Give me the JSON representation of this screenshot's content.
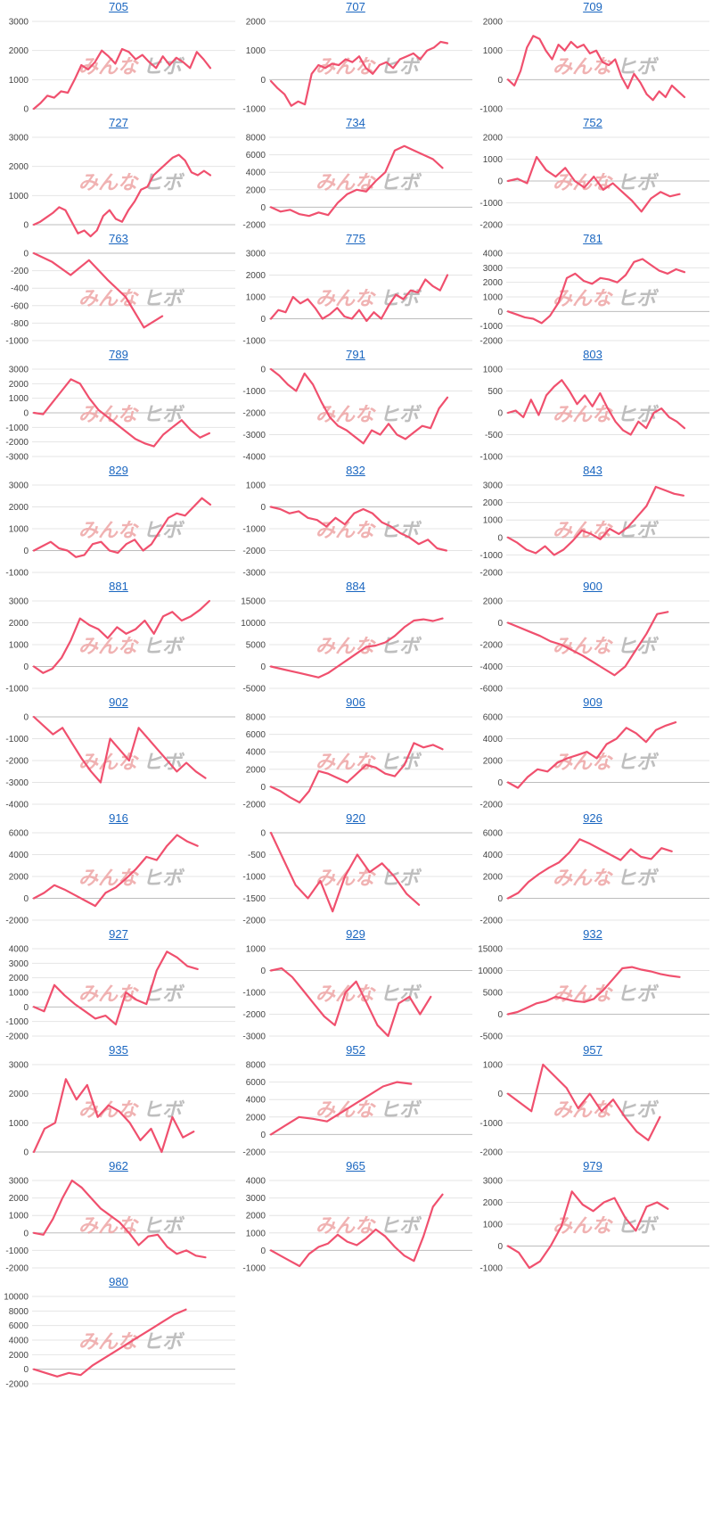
{
  "style": {
    "line_color": "#f0506e",
    "title_color": "#1a66c0",
    "grid_color": "#e4e4e4",
    "axis_color": "#bdbdbd",
    "tick_color": "#444444",
    "watermark_left_color": "#efaaaa",
    "watermark_right_color": "#b8b8b8"
  },
  "watermark": {
    "left": "みんな",
    "right": "ヒボ"
  },
  "chart_data": [
    {
      "title": "705",
      "type": "line",
      "yticks": [
        0,
        1000,
        2000,
        3000
      ],
      "ylim": [
        0,
        3000
      ],
      "values": [
        0,
        200,
        450,
        380,
        600,
        550,
        1000,
        1500,
        1350,
        1600,
        2000,
        1800,
        1550,
        2050,
        1950,
        1700,
        1850,
        1600,
        1400,
        1800,
        1500,
        1750,
        1600,
        1400,
        1950,
        1700,
        1400
      ]
    },
    {
      "title": "707",
      "type": "line",
      "yticks": [
        -1000,
        0,
        1000,
        2000
      ],
      "ylim": [
        -1000,
        2000
      ],
      "values": [
        -50,
        -300,
        -500,
        -900,
        -750,
        -850,
        200,
        500,
        400,
        550,
        500,
        700,
        600,
        800,
        400,
        200,
        500,
        600,
        400,
        700,
        800,
        900,
        700,
        1000,
        1100,
        1300,
        1250
      ]
    },
    {
      "title": "709",
      "type": "line",
      "yticks": [
        -1000,
        0,
        1000,
        2000
      ],
      "ylim": [
        -1000,
        2000
      ],
      "values": [
        0,
        -200,
        300,
        1100,
        1500,
        1400,
        1000,
        700,
        1200,
        1000,
        1300,
        1100,
        1200,
        900,
        1000,
        600,
        500,
        700,
        100,
        -300,
        200,
        -100,
        -500,
        -700,
        -400,
        -600,
        -200,
        -400,
        -600
      ]
    },
    {
      "title": "727",
      "type": "line",
      "yticks": [
        0,
        1000,
        2000,
        3000
      ],
      "ylim": [
        0,
        3000
      ],
      "values": [
        0,
        100,
        250,
        400,
        600,
        500,
        100,
        -300,
        -200,
        -400,
        -200,
        300,
        500,
        200,
        100,
        500,
        800,
        1200,
        1300,
        1700,
        1900,
        2100,
        2300,
        2400,
        2200,
        1800,
        1700,
        1850,
        1700
      ]
    },
    {
      "title": "734",
      "type": "line",
      "yticks": [
        -2000,
        0,
        2000,
        4000,
        6000,
        8000
      ],
      "ylim": [
        -2000,
        8000
      ],
      "values": [
        0,
        -500,
        -300,
        -800,
        -1000,
        -600,
        -900,
        500,
        1500,
        2000,
        1800,
        3000,
        4000,
        6500,
        7000,
        6500,
        6000,
        5500,
        4500
      ]
    },
    {
      "title": "752",
      "type": "line",
      "yticks": [
        -2000,
        -1000,
        0,
        1000,
        2000
      ],
      "ylim": [
        -2000,
        2000
      ],
      "values": [
        0,
        100,
        -100,
        1100,
        500,
        200,
        600,
        0,
        -300,
        200,
        -400,
        -100,
        -500,
        -900,
        -1400,
        -800,
        -500,
        -700,
        -600
      ]
    },
    {
      "title": "763",
      "type": "line",
      "yticks": [
        -1000,
        -800,
        -600,
        -400,
        -200,
        0
      ],
      "ylim": [
        -1000,
        0
      ],
      "values": [
        0,
        -100,
        -250,
        -80,
        -300,
        -500,
        -850,
        -720
      ]
    },
    {
      "title": "775",
      "type": "line",
      "yticks": [
        -1000,
        0,
        1000,
        2000,
        3000
      ],
      "ylim": [
        -1000,
        3000
      ],
      "values": [
        0,
        400,
        300,
        1000,
        700,
        900,
        500,
        0,
        200,
        500,
        100,
        0,
        400,
        -100,
        300,
        0,
        600,
        1100,
        900,
        1300,
        1200,
        1800,
        1500,
        1300,
        2000
      ]
    },
    {
      "title": "781",
      "type": "line",
      "yticks": [
        -2000,
        -1000,
        0,
        1000,
        2000,
        3000,
        4000
      ],
      "ylim": [
        -2000,
        4000
      ],
      "values": [
        0,
        -200,
        -400,
        -500,
        -800,
        -300,
        600,
        2300,
        2600,
        2100,
        1900,
        2300,
        2200,
        2000,
        2500,
        3400,
        3600,
        3200,
        2800,
        2600,
        2900,
        2700
      ]
    },
    {
      "title": "789",
      "type": "line",
      "yticks": [
        -3000,
        -2000,
        -1000,
        0,
        1000,
        2000,
        3000
      ],
      "ylim": [
        -3000,
        3000
      ],
      "values": [
        0,
        -100,
        700,
        1500,
        2300,
        2000,
        1000,
        200,
        -300,
        -800,
        -1300,
        -1800,
        -2100,
        -2300,
        -1500,
        -1000,
        -500,
        -1200,
        -1700,
        -1400
      ]
    },
    {
      "title": "791",
      "type": "line",
      "yticks": [
        -4000,
        -3000,
        -2000,
        -1000,
        0
      ],
      "ylim": [
        -4000,
        0
      ],
      "values": [
        0,
        -300,
        -700,
        -1000,
        -200,
        -700,
        -1500,
        -2200,
        -2600,
        -2800,
        -3100,
        -3400,
        -2800,
        -3000,
        -2500,
        -3000,
        -3200,
        -2900,
        -2600,
        -2700,
        -1800,
        -1300
      ]
    },
    {
      "title": "803",
      "type": "line",
      "yticks": [
        -1000,
        -500,
        0,
        500,
        1000
      ],
      "ylim": [
        -1000,
        1000
      ],
      "values": [
        0,
        50,
        -100,
        300,
        -50,
        400,
        600,
        750,
        500,
        200,
        400,
        150,
        450,
        100,
        -200,
        -400,
        -500,
        -200,
        -350,
        0,
        100,
        -100,
        -200,
        -350
      ]
    },
    {
      "title": "829",
      "type": "line",
      "yticks": [
        -1000,
        0,
        1000,
        2000,
        3000
      ],
      "ylim": [
        -1000,
        3000
      ],
      "values": [
        0,
        200,
        400,
        100,
        0,
        -300,
        -200,
        300,
        400,
        0,
        -100,
        300,
        500,
        0,
        300,
        900,
        1500,
        1700,
        1600,
        2000,
        2400,
        2100
      ]
    },
    {
      "title": "832",
      "type": "line",
      "yticks": [
        -3000,
        -2000,
        -1000,
        0,
        1000
      ],
      "ylim": [
        -3000,
        1000
      ],
      "values": [
        0,
        -100,
        -300,
        -200,
        -500,
        -600,
        -900,
        -500,
        -800,
        -300,
        -100,
        -300,
        -700,
        -900,
        -1200,
        -1400,
        -1700,
        -1500,
        -1900,
        -2000
      ]
    },
    {
      "title": "843",
      "type": "line",
      "yticks": [
        -2000,
        -1000,
        0,
        1000,
        2000,
        3000
      ],
      "ylim": [
        -2000,
        3000
      ],
      "values": [
        0,
        -300,
        -700,
        -900,
        -500,
        -1000,
        -700,
        -200,
        400,
        200,
        -100,
        500,
        200,
        600,
        1200,
        1800,
        2900,
        2700,
        2500,
        2400
      ]
    },
    {
      "title": "881",
      "type": "line",
      "yticks": [
        -1000,
        0,
        1000,
        2000,
        3000
      ],
      "ylim": [
        -1000,
        3000
      ],
      "values": [
        0,
        -300,
        -100,
        400,
        1200,
        2200,
        1900,
        1700,
        1300,
        1800,
        1500,
        1700,
        2100,
        1500,
        2300,
        2500,
        2100,
        2300,
        2600,
        3000
      ]
    },
    {
      "title": "884",
      "type": "line",
      "yticks": [
        -5000,
        0,
        5000,
        10000,
        15000
      ],
      "ylim": [
        -5000,
        15000
      ],
      "values": [
        0,
        -500,
        -1000,
        -1500,
        -2000,
        -2500,
        -1500,
        0,
        1500,
        3000,
        4500,
        4800,
        5500,
        7000,
        9000,
        10500,
        10800,
        10400,
        11000
      ]
    },
    {
      "title": "900",
      "type": "line",
      "yticks": [
        -6000,
        -4000,
        -2000,
        0,
        2000
      ],
      "ylim": [
        -6000,
        2000
      ],
      "values": [
        0,
        -400,
        -800,
        -1200,
        -1700,
        -2000,
        -2500,
        -3000,
        -3600,
        -4200,
        -4800,
        -4000,
        -2500,
        -1000,
        800,
        1000
      ]
    },
    {
      "title": "902",
      "type": "line",
      "yticks": [
        -4000,
        -3000,
        -2000,
        -1000,
        0
      ],
      "ylim": [
        -4000,
        0
      ],
      "values": [
        0,
        -400,
        -800,
        -500,
        -1200,
        -1900,
        -2500,
        -3000,
        -1000,
        -1500,
        -2000,
        -500,
        -1000,
        -1500,
        -2000,
        -2500,
        -2100,
        -2500,
        -2800
      ]
    },
    {
      "title": "906",
      "type": "line",
      "yticks": [
        -2000,
        0,
        2000,
        4000,
        6000,
        8000
      ],
      "ylim": [
        -2000,
        8000
      ],
      "values": [
        0,
        -500,
        -1200,
        -1800,
        -500,
        1800,
        1500,
        1000,
        500,
        1500,
        2500,
        2200,
        1500,
        1200,
        2500,
        5000,
        4500,
        4800,
        4300
      ]
    },
    {
      "title": "909",
      "type": "line",
      "yticks": [
        -2000,
        0,
        2000,
        4000,
        6000
      ],
      "ylim": [
        -2000,
        6000
      ],
      "values": [
        0,
        -500,
        500,
        1200,
        1000,
        1800,
        2200,
        2500,
        2800,
        2200,
        3500,
        4000,
        5000,
        4500,
        3700,
        4800,
        5200,
        5500
      ]
    },
    {
      "title": "916",
      "type": "line",
      "yticks": [
        -2000,
        0,
        2000,
        4000,
        6000
      ],
      "ylim": [
        -2000,
        6000
      ],
      "values": [
        0,
        500,
        1200,
        800,
        300,
        -200,
        -700,
        500,
        1000,
        1800,
        2700,
        3800,
        3500,
        4800,
        5800,
        5200,
        4800
      ]
    },
    {
      "title": "920",
      "type": "line",
      "yticks": [
        -2000,
        -1500,
        -1000,
        -500,
        0
      ],
      "ylim": [
        -2000,
        0
      ],
      "values": [
        0,
        -600,
        -1200,
        -1500,
        -1100,
        -1800,
        -1000,
        -500,
        -900,
        -700,
        -1000,
        -1400,
        -1650
      ]
    },
    {
      "title": "926",
      "type": "line",
      "yticks": [
        -2000,
        0,
        2000,
        4000,
        6000
      ],
      "ylim": [
        -2000,
        6000
      ],
      "values": [
        0,
        500,
        1500,
        2200,
        2800,
        3300,
        4200,
        5400,
        5000,
        4500,
        4000,
        3500,
        4500,
        3800,
        3600,
        4600,
        4300
      ]
    },
    {
      "title": "927",
      "type": "line",
      "yticks": [
        -2000,
        -1000,
        0,
        1000,
        2000,
        3000,
        4000
      ],
      "ylim": [
        -2000,
        4000
      ],
      "values": [
        0,
        -300,
        1500,
        800,
        200,
        -300,
        -800,
        -600,
        -1200,
        1000,
        500,
        200,
        2500,
        3800,
        3400,
        2800,
        2600
      ]
    },
    {
      "title": "929",
      "type": "line",
      "yticks": [
        -3000,
        -2000,
        -1000,
        0,
        1000
      ],
      "ylim": [
        -3000,
        1000
      ],
      "values": [
        0,
        100,
        -300,
        -900,
        -1500,
        -2100,
        -2500,
        -1000,
        -500,
        -1500,
        -2500,
        -3000,
        -1500,
        -1200,
        -2000,
        -1200
      ]
    },
    {
      "title": "932",
      "type": "line",
      "yticks": [
        -5000,
        0,
        5000,
        10000,
        15000
      ],
      "ylim": [
        -5000,
        15000
      ],
      "values": [
        0,
        500,
        1500,
        2500,
        3000,
        4000,
        3500,
        3000,
        2800,
        3500,
        5500,
        8000,
        10500,
        10800,
        10200,
        9800,
        9200,
        8800,
        8500
      ]
    },
    {
      "title": "935",
      "type": "line",
      "yticks": [
        0,
        1000,
        2000,
        3000
      ],
      "ylim": [
        0,
        3000
      ],
      "values": [
        0,
        800,
        1000,
        2500,
        1800,
        2300,
        1200,
        1600,
        1400,
        1000,
        400,
        800,
        0,
        1200,
        500,
        700
      ]
    },
    {
      "title": "952",
      "type": "line",
      "yticks": [
        -2000,
        0,
        2000,
        4000,
        6000,
        8000
      ],
      "ylim": [
        -2000,
        8000
      ],
      "values": [
        0,
        1000,
        2000,
        1800,
        1500,
        2500,
        3500,
        4500,
        5500,
        6000,
        5800
      ]
    },
    {
      "title": "957",
      "type": "line",
      "yticks": [
        -2000,
        -1000,
        0,
        1000
      ],
      "ylim": [
        -2000,
        1000
      ],
      "values": [
        0,
        -300,
        -600,
        1000,
        600,
        200,
        -500,
        0,
        -600,
        -200,
        -800,
        -1300,
        -1600,
        -800
      ]
    },
    {
      "title": "962",
      "type": "line",
      "yticks": [
        -2000,
        -1000,
        0,
        1000,
        2000,
        3000
      ],
      "ylim": [
        -2000,
        3000
      ],
      "values": [
        0,
        -100,
        800,
        2000,
        3000,
        2600,
        2000,
        1400,
        1000,
        600,
        0,
        -700,
        -200,
        -100,
        -800,
        -1200,
        -1000,
        -1300,
        -1400
      ]
    },
    {
      "title": "965",
      "type": "line",
      "yticks": [
        -1000,
        0,
        1000,
        2000,
        3000,
        4000
      ],
      "ylim": [
        -1000,
        4000
      ],
      "values": [
        0,
        -300,
        -600,
        -900,
        -200,
        200,
        400,
        900,
        500,
        300,
        700,
        1200,
        800,
        200,
        -300,
        -600,
        800,
        2500,
        3200
      ]
    },
    {
      "title": "979",
      "type": "line",
      "yticks": [
        -1000,
        0,
        1000,
        2000,
        3000
      ],
      "ylim": [
        -1000,
        3000
      ],
      "values": [
        0,
        -300,
        -1000,
        -700,
        0,
        900,
        2500,
        1900,
        1600,
        2000,
        2200,
        1300,
        700,
        1800,
        2000,
        1700
      ]
    },
    {
      "title": "980",
      "type": "line",
      "yticks": [
        -2000,
        0,
        2000,
        4000,
        6000,
        8000,
        10000
      ],
      "ylim": [
        -2000,
        10000
      ],
      "values": [
        0,
        -500,
        -1000,
        -500,
        -800,
        500,
        1500,
        2500,
        3500,
        4500,
        5500,
        6500,
        7500,
        8200
      ]
    }
  ]
}
